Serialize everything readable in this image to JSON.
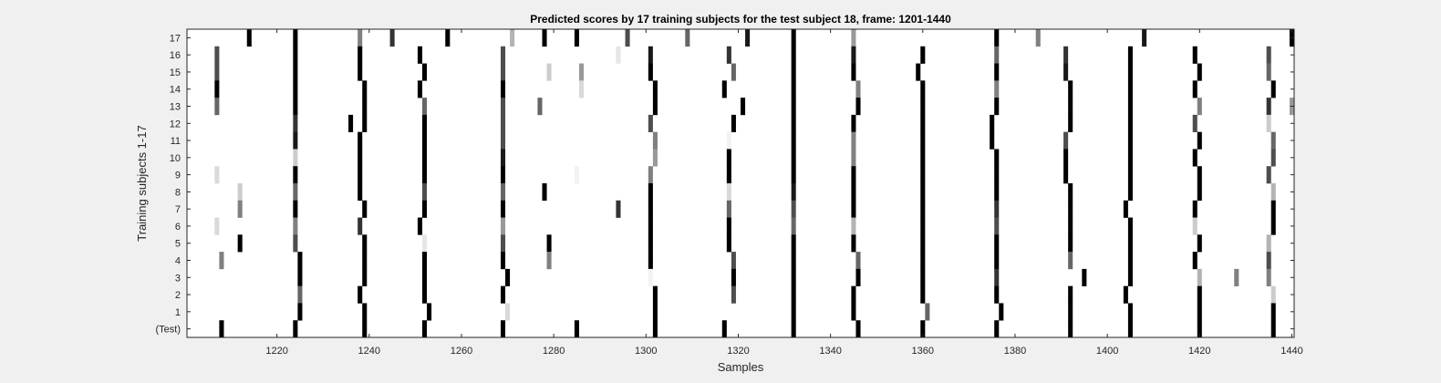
{
  "chart_data": {
    "type": "heatmap",
    "title": "Predicted scores by 17 training subjects for the test subject 18, frame: 1201-1440",
    "xlabel": "Samples",
    "ylabel": "Training subjects 1-17",
    "xlim": [
      1201,
      1440
    ],
    "x_ticks": [
      1220,
      1240,
      1260,
      1280,
      1300,
      1320,
      1340,
      1360,
      1380,
      1400,
      1420,
      1440
    ],
    "y_ticks": [
      "17",
      "16",
      "15",
      "14",
      "13",
      "12",
      "11",
      "10",
      "9",
      "8",
      "7",
      "6",
      "5",
      "4",
      "3",
      "2",
      "1",
      "(Test)"
    ],
    "colormap": "gray-inverted",
    "grid": false,
    "rows": [
      {
        "label": "17",
        "marks": [
          [
            1214,
            1.0
          ],
          [
            1224,
            1.0
          ],
          [
            1238,
            0.5
          ],
          [
            1245,
            0.8
          ],
          [
            1257,
            1.0
          ],
          [
            1271,
            0.3
          ],
          [
            1278,
            1.0
          ],
          [
            1285,
            1.0
          ],
          [
            1296,
            0.7
          ],
          [
            1309,
            0.6
          ],
          [
            1322,
            0.9
          ],
          [
            1332,
            1.0
          ],
          [
            1345,
            0.4
          ],
          [
            1376,
            1.0
          ],
          [
            1385,
            0.5
          ],
          [
            1408,
            0.9
          ],
          [
            1440,
            1.0
          ]
        ]
      },
      {
        "label": "16",
        "marks": [
          [
            1207,
            0.7
          ],
          [
            1224,
            1.0
          ],
          [
            1238,
            1.0
          ],
          [
            1251,
            1.0
          ],
          [
            1269,
            0.7
          ],
          [
            1294,
            0.1
          ],
          [
            1301,
            0.9
          ],
          [
            1318,
            0.8
          ],
          [
            1332,
            1.0
          ],
          [
            1345,
            0.9
          ],
          [
            1360,
            1.0
          ],
          [
            1376,
            0.6
          ],
          [
            1391,
            0.8
          ],
          [
            1405,
            1.0
          ],
          [
            1419,
            1.0
          ],
          [
            1435,
            0.7
          ]
        ]
      },
      {
        "label": "15",
        "marks": [
          [
            1207,
            0.7
          ],
          [
            1224,
            1.0
          ],
          [
            1238,
            1.0
          ],
          [
            1252,
            1.0
          ],
          [
            1269,
            0.7
          ],
          [
            1279,
            0.2
          ],
          [
            1286,
            0.4
          ],
          [
            1301,
            1.0
          ],
          [
            1319,
            0.6
          ],
          [
            1332,
            1.0
          ],
          [
            1345,
            1.0
          ],
          [
            1359,
            1.0
          ],
          [
            1376,
            1.0
          ],
          [
            1391,
            0.9
          ],
          [
            1405,
            1.0
          ],
          [
            1420,
            1.0
          ],
          [
            1435,
            0.6
          ]
        ]
      },
      {
        "label": "14",
        "marks": [
          [
            1207,
            1.0
          ],
          [
            1224,
            1.0
          ],
          [
            1239,
            1.0
          ],
          [
            1251,
            1.0
          ],
          [
            1269,
            1.0
          ],
          [
            1286,
            0.15
          ],
          [
            1302,
            1.0
          ],
          [
            1317,
            1.0
          ],
          [
            1332,
            1.0
          ],
          [
            1346,
            0.5
          ],
          [
            1360,
            1.0
          ],
          [
            1376,
            0.5
          ],
          [
            1392,
            1.0
          ],
          [
            1405,
            1.0
          ],
          [
            1419,
            1.0
          ],
          [
            1436,
            1.0
          ]
        ]
      },
      {
        "label": "13",
        "marks": [
          [
            1207,
            0.6
          ],
          [
            1224,
            1.0
          ],
          [
            1239,
            1.0
          ],
          [
            1252,
            0.6
          ],
          [
            1269,
            0.7
          ],
          [
            1277,
            0.6
          ],
          [
            1302,
            1.0
          ],
          [
            1321,
            1.0
          ],
          [
            1332,
            1.0
          ],
          [
            1346,
            1.0
          ],
          [
            1360,
            1.0
          ],
          [
            1376,
            1.0
          ],
          [
            1392,
            1.0
          ],
          [
            1405,
            1.0
          ],
          [
            1420,
            0.5
          ],
          [
            1435,
            0.8
          ],
          [
            1440,
            0.4
          ]
        ]
      },
      {
        "label": "12",
        "marks": [
          [
            1224,
            0.8
          ],
          [
            1236,
            1.0
          ],
          [
            1239,
            1.0
          ],
          [
            1252,
            1.0
          ],
          [
            1269,
            0.7
          ],
          [
            1301,
            0.7
          ],
          [
            1319,
            1.0
          ],
          [
            1332,
            1.0
          ],
          [
            1345,
            1.0
          ],
          [
            1360,
            1.0
          ],
          [
            1375,
            1.0
          ],
          [
            1392,
            1.0
          ],
          [
            1405,
            1.0
          ],
          [
            1419,
            0.7
          ],
          [
            1435,
            0.2
          ]
        ]
      },
      {
        "label": "11",
        "marks": [
          [
            1224,
            0.9
          ],
          [
            1238,
            1.0
          ],
          [
            1252,
            1.0
          ],
          [
            1269,
            0.7
          ],
          [
            1302,
            0.5
          ],
          [
            1318,
            0.05
          ],
          [
            1332,
            1.0
          ],
          [
            1345,
            0.5
          ],
          [
            1360,
            1.0
          ],
          [
            1375,
            1.0
          ],
          [
            1391,
            0.7
          ],
          [
            1405,
            1.0
          ],
          [
            1420,
            1.0
          ],
          [
            1436,
            0.6
          ]
        ]
      },
      {
        "label": "10",
        "marks": [
          [
            1224,
            0.2
          ],
          [
            1238,
            1.0
          ],
          [
            1252,
            1.0
          ],
          [
            1269,
            0.9
          ],
          [
            1302,
            0.4
          ],
          [
            1318,
            1.0
          ],
          [
            1332,
            1.0
          ],
          [
            1345,
            0.5
          ],
          [
            1360,
            1.0
          ],
          [
            1376,
            1.0
          ],
          [
            1391,
            1.0
          ],
          [
            1405,
            1.0
          ],
          [
            1419,
            1.0
          ],
          [
            1436,
            0.7
          ]
        ]
      },
      {
        "label": "9",
        "marks": [
          [
            1207,
            0.15
          ],
          [
            1224,
            1.0
          ],
          [
            1238,
            1.0
          ],
          [
            1252,
            1.0
          ],
          [
            1269,
            1.0
          ],
          [
            1285,
            0.05
          ],
          [
            1301,
            0.5
          ],
          [
            1318,
            1.0
          ],
          [
            1332,
            1.0
          ],
          [
            1345,
            1.0
          ],
          [
            1360,
            1.0
          ],
          [
            1376,
            1.0
          ],
          [
            1391,
            1.0
          ],
          [
            1405,
            1.0
          ],
          [
            1420,
            1.0
          ],
          [
            1435,
            0.7
          ]
        ]
      },
      {
        "label": "8",
        "marks": [
          [
            1212,
            0.2
          ],
          [
            1224,
            0.6
          ],
          [
            1238,
            1.0
          ],
          [
            1252,
            0.7
          ],
          [
            1269,
            0.6
          ],
          [
            1278,
            1.0
          ],
          [
            1301,
            1.0
          ],
          [
            1318,
            0.15
          ],
          [
            1332,
            0.9
          ],
          [
            1345,
            1.0
          ],
          [
            1360,
            1.0
          ],
          [
            1376,
            1.0
          ],
          [
            1392,
            1.0
          ],
          [
            1405,
            1.0
          ],
          [
            1420,
            1.0
          ],
          [
            1436,
            0.3
          ]
        ]
      },
      {
        "label": "7",
        "marks": [
          [
            1212,
            0.5
          ],
          [
            1224,
            1.0
          ],
          [
            1239,
            1.0
          ],
          [
            1252,
            1.0
          ],
          [
            1269,
            1.0
          ],
          [
            1294,
            0.8
          ],
          [
            1301,
            1.0
          ],
          [
            1318,
            0.6
          ],
          [
            1332,
            0.7
          ],
          [
            1345,
            1.0
          ],
          [
            1360,
            1.0
          ],
          [
            1376,
            0.8
          ],
          [
            1392,
            1.0
          ],
          [
            1404,
            1.0
          ],
          [
            1419,
            1.0
          ],
          [
            1436,
            1.0
          ]
        ]
      },
      {
        "label": "6",
        "marks": [
          [
            1207,
            0.15
          ],
          [
            1224,
            0.5
          ],
          [
            1238,
            0.8
          ],
          [
            1251,
            1.0
          ],
          [
            1269,
            0.4
          ],
          [
            1301,
            1.0
          ],
          [
            1318,
            1.0
          ],
          [
            1332,
            0.6
          ],
          [
            1345,
            0.3
          ],
          [
            1360,
            1.0
          ],
          [
            1376,
            0.7
          ],
          [
            1392,
            1.0
          ],
          [
            1405,
            1.0
          ],
          [
            1419,
            0.2
          ],
          [
            1436,
            1.0
          ]
        ]
      },
      {
        "label": "5",
        "marks": [
          [
            1212,
            1.0
          ],
          [
            1224,
            0.7
          ],
          [
            1239,
            1.0
          ],
          [
            1252,
            0.1
          ],
          [
            1269,
            0.7
          ],
          [
            1279,
            1.0
          ],
          [
            1301,
            1.0
          ],
          [
            1318,
            1.0
          ],
          [
            1332,
            1.0
          ],
          [
            1345,
            1.0
          ],
          [
            1360,
            1.0
          ],
          [
            1376,
            1.0
          ],
          [
            1392,
            1.0
          ],
          [
            1405,
            1.0
          ],
          [
            1420,
            1.0
          ],
          [
            1435,
            0.3
          ]
        ]
      },
      {
        "label": "4",
        "marks": [
          [
            1208,
            0.5
          ],
          [
            1225,
            1.0
          ],
          [
            1239,
            1.0
          ],
          [
            1252,
            1.0
          ],
          [
            1269,
            1.0
          ],
          [
            1279,
            0.5
          ],
          [
            1301,
            1.0
          ],
          [
            1319,
            0.7
          ],
          [
            1332,
            1.0
          ],
          [
            1346,
            0.6
          ],
          [
            1360,
            1.0
          ],
          [
            1376,
            1.0
          ],
          [
            1392,
            0.6
          ],
          [
            1405,
            1.0
          ],
          [
            1419,
            1.0
          ],
          [
            1435,
            0.7
          ]
        ]
      },
      {
        "label": "3",
        "marks": [
          [
            1225,
            1.0
          ],
          [
            1239,
            1.0
          ],
          [
            1252,
            1.0
          ],
          [
            1270,
            1.0
          ],
          [
            1301,
            0.05
          ],
          [
            1319,
            1.0
          ],
          [
            1332,
            1.0
          ],
          [
            1346,
            1.0
          ],
          [
            1360,
            1.0
          ],
          [
            1376,
            0.8
          ],
          [
            1395,
            1.0
          ],
          [
            1405,
            1.0
          ],
          [
            1420,
            0.3
          ],
          [
            1428,
            0.5
          ],
          [
            1435,
            0.5
          ]
        ]
      },
      {
        "label": "2",
        "marks": [
          [
            1225,
            0.6
          ],
          [
            1238,
            1.0
          ],
          [
            1252,
            1.0
          ],
          [
            1269,
            1.0
          ],
          [
            1302,
            1.0
          ],
          [
            1319,
            0.7
          ],
          [
            1332,
            1.0
          ],
          [
            1345,
            1.0
          ],
          [
            1360,
            1.0
          ],
          [
            1376,
            1.0
          ],
          [
            1392,
            1.0
          ],
          [
            1404,
            1.0
          ],
          [
            1420,
            1.0
          ],
          [
            1436,
            0.2
          ]
        ]
      },
      {
        "label": "1",
        "marks": [
          [
            1225,
            1.0
          ],
          [
            1239,
            1.0
          ],
          [
            1253,
            1.0
          ],
          [
            1270,
            0.15
          ],
          [
            1302,
            1.0
          ],
          [
            1332,
            1.0
          ],
          [
            1345,
            1.0
          ],
          [
            1361,
            0.6
          ],
          [
            1377,
            1.0
          ],
          [
            1392,
            1.0
          ],
          [
            1405,
            1.0
          ],
          [
            1420,
            1.0
          ],
          [
            1436,
            1.0
          ]
        ]
      },
      {
        "label": "(Test)",
        "marks": [
          [
            1208,
            1.0
          ],
          [
            1224,
            1.0
          ],
          [
            1239,
            1.0
          ],
          [
            1252,
            1.0
          ],
          [
            1269,
            1.0
          ],
          [
            1285,
            1.0
          ],
          [
            1302,
            1.0
          ],
          [
            1317,
            1.0
          ],
          [
            1332,
            1.0
          ],
          [
            1346,
            1.0
          ],
          [
            1360,
            1.0
          ],
          [
            1376,
            1.0
          ],
          [
            1392,
            1.0
          ],
          [
            1405,
            1.0
          ],
          [
            1420,
            1.0
          ],
          [
            1436,
            1.0
          ]
        ]
      }
    ]
  }
}
